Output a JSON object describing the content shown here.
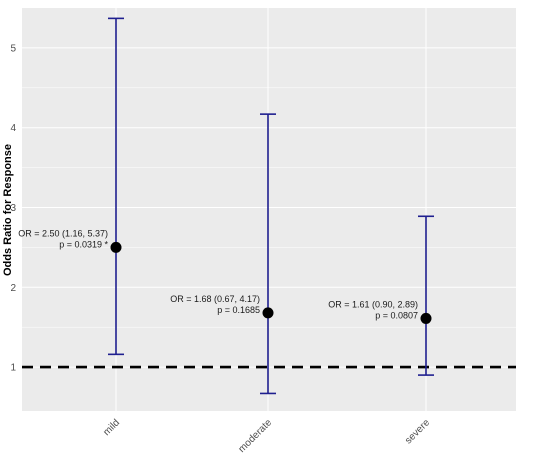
{
  "chart_data": {
    "type": "errorbar",
    "ylabel": "Odds Ratio for Response",
    "xlabel": "",
    "categories": [
      "mild",
      "moderate",
      "severe"
    ],
    "estimates": [
      2.5,
      1.68,
      1.61
    ],
    "lower": [
      1.16,
      0.67,
      0.9
    ],
    "upper": [
      5.37,
      4.17,
      2.89
    ],
    "annotations": [
      [
        "OR = 2.50 (1.16, 5.37)",
        "p = 0.0319 *"
      ],
      [
        "OR = 1.68 (0.67, 4.17)",
        "p = 0.1685"
      ],
      [
        "OR = 1.61 (0.90, 2.89)",
        "p = 0.0807"
      ]
    ],
    "yticks": [
      1,
      2,
      3,
      4,
      5
    ],
    "ylim": [
      0.45,
      5.5
    ],
    "reference_line": 1,
    "grid": true,
    "colors": {
      "panel": "#ebebeb",
      "grid": "#ffffff",
      "errorbar": "#1f1f8f",
      "point": "#000000",
      "reference": "#000000"
    }
  }
}
